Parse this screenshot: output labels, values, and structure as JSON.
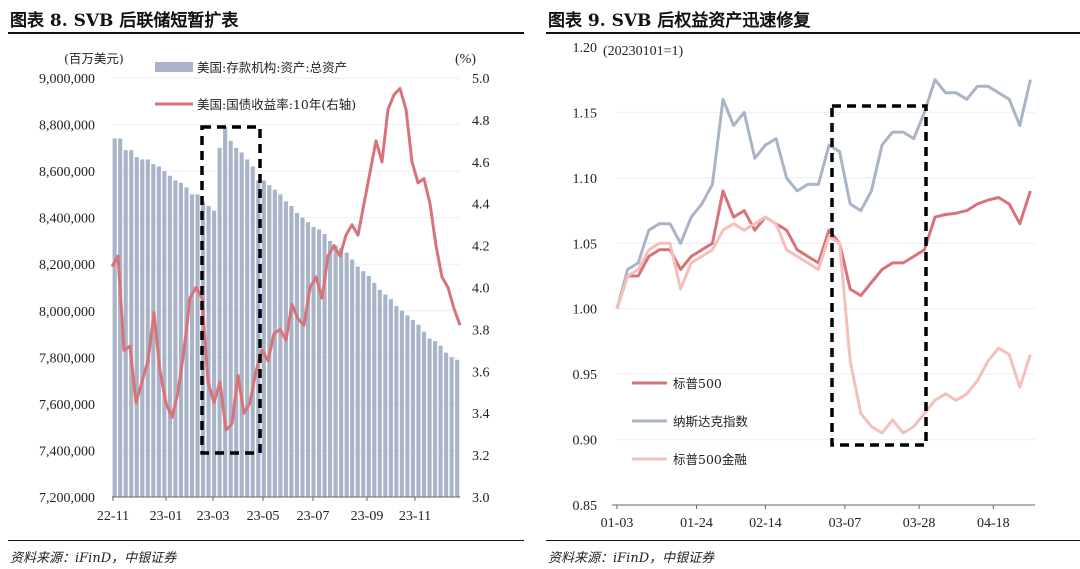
{
  "chart_data": [
    {
      "type": "bar",
      "title": "图表 8. SVB 后联储短暂扩表",
      "left_unit": "(百万美元)",
      "right_unit": "(%)",
      "source": "资料来源：iFinD，中银证券",
      "ylim": [
        7200000,
        9000000
      ],
      "y2lim": [
        3.0,
        5.0
      ],
      "yticks": [
        "9,000,000",
        "8,800,000",
        "8,600,000",
        "8,400,000",
        "8,200,000",
        "8,000,000",
        "7,800,000",
        "7,600,000",
        "7,400,000",
        "7,200,000"
      ],
      "y2ticks": [
        "5.0",
        "4.8",
        "4.6",
        "4.4",
        "4.2",
        "4.0",
        "3.8",
        "3.6",
        "3.4",
        "3.2",
        "3.0"
      ],
      "xticks": [
        "22-11",
        "23-01",
        "23-03",
        "23-05",
        "23-07",
        "23-09",
        "23-11"
      ],
      "legend": [
        "美国:存款机构:资产:总资产",
        "美国:国债收益率:10年(右轴)"
      ],
      "colors": {
        "bars": "#a9b4c9",
        "line": "#d9737a"
      },
      "series": [
        {
          "name": "美国:存款机构:资产:总资产",
          "axis": "left",
          "type": "bar",
          "values": [
            8740000,
            8740000,
            8690000,
            8690000,
            8660000,
            8650000,
            8650000,
            8630000,
            8620000,
            8600000,
            8580000,
            8560000,
            8550000,
            8530000,
            8500000,
            8500000,
            8470000,
            8450000,
            8430000,
            8700000,
            8790000,
            8730000,
            8700000,
            8680000,
            8650000,
            8620000,
            8560000,
            8560000,
            8540000,
            8520000,
            8500000,
            8470000,
            8450000,
            8420000,
            8400000,
            8380000,
            8360000,
            8350000,
            8330000,
            8300000,
            8280000,
            8270000,
            8250000,
            8220000,
            8190000,
            8170000,
            8150000,
            8120000,
            8090000,
            8070000,
            8050000,
            8020000,
            8000000,
            7980000,
            7960000,
            7940000,
            7910000,
            7880000,
            7870000,
            7850000,
            7820000,
            7800000,
            7790000
          ]
        },
        {
          "name": "美国:国债收益率:10年(右轴)",
          "axis": "right",
          "type": "line",
          "values": [
            4.1,
            4.15,
            3.7,
            3.72,
            3.45,
            3.55,
            3.65,
            3.88,
            3.6,
            3.45,
            3.38,
            3.5,
            3.7,
            3.95,
            4.0,
            3.95,
            3.55,
            3.45,
            3.55,
            3.32,
            3.35,
            3.58,
            3.4,
            3.45,
            3.6,
            3.7,
            3.65,
            3.78,
            3.8,
            3.75,
            3.92,
            3.85,
            3.82,
            4.0,
            4.05,
            3.95,
            4.15,
            4.2,
            4.15,
            4.25,
            4.3,
            4.25,
            4.4,
            4.55,
            4.7,
            4.6,
            4.85,
            4.92,
            4.95,
            4.85,
            4.6,
            4.5,
            4.52,
            4.4,
            4.2,
            4.05,
            4.0,
            3.9,
            3.82
          ]
        }
      ]
    },
    {
      "type": "line",
      "title": "图表 9. SVB 后权益资产迅速修复",
      "unit_note": "(20230101=1)",
      "source": "资料来源：iFinD，中银证券",
      "ylim": [
        0.85,
        1.2
      ],
      "yticks": [
        "1.20",
        "1.15",
        "1.10",
        "1.05",
        "1.00",
        "0.95",
        "0.90",
        "0.85"
      ],
      "xticks": [
        "01-03",
        "01-24",
        "02-14",
        "03-07",
        "03-28",
        "04-18"
      ],
      "xtick_days": [
        0,
        15,
        28,
        43,
        57,
        71
      ],
      "x_days": [
        0,
        2,
        4,
        6,
        8,
        10,
        12,
        14,
        16,
        18,
        20,
        22,
        24,
        26,
        28,
        30,
        32,
        34,
        36,
        38,
        40,
        42,
        44,
        46,
        48,
        50,
        52,
        54,
        56,
        58,
        60,
        62,
        64,
        66,
        68,
        70,
        72,
        74,
        76,
        78
      ],
      "series": [
        {
          "name": "标普500",
          "color": "#d9737a",
          "values": [
            1.0,
            1.025,
            1.025,
            1.04,
            1.045,
            1.045,
            1.03,
            1.04,
            1.045,
            1.05,
            1.09,
            1.07,
            1.075,
            1.06,
            1.07,
            1.065,
            1.06,
            1.045,
            1.04,
            1.035,
            1.06,
            1.05,
            1.015,
            1.01,
            1.02,
            1.03,
            1.035,
            1.035,
            1.04,
            1.045,
            1.07,
            1.072,
            1.073,
            1.075,
            1.08,
            1.083,
            1.085,
            1.08,
            1.065,
            1.09
          ]
        },
        {
          "name": "纳斯达克指数",
          "color": "#a9b4c9",
          "values": [
            1.0,
            1.03,
            1.035,
            1.06,
            1.065,
            1.065,
            1.05,
            1.07,
            1.08,
            1.095,
            1.16,
            1.14,
            1.15,
            1.115,
            1.125,
            1.13,
            1.1,
            1.09,
            1.095,
            1.095,
            1.125,
            1.12,
            1.08,
            1.075,
            1.09,
            1.125,
            1.135,
            1.135,
            1.13,
            1.15,
            1.175,
            1.165,
            1.165,
            1.16,
            1.17,
            1.17,
            1.165,
            1.16,
            1.14,
            1.175
          ]
        },
        {
          "name": "标普500金融",
          "color": "#f4c0bc",
          "values": [
            1.0,
            1.025,
            1.03,
            1.045,
            1.05,
            1.05,
            1.015,
            1.035,
            1.04,
            1.045,
            1.06,
            1.065,
            1.06,
            1.065,
            1.07,
            1.065,
            1.045,
            1.04,
            1.035,
            1.03,
            1.055,
            1.05,
            0.96,
            0.92,
            0.91,
            0.905,
            0.915,
            0.905,
            0.91,
            0.92,
            0.93,
            0.935,
            0.93,
            0.935,
            0.945,
            0.96,
            0.97,
            0.965,
            0.94,
            0.965
          ]
        }
      ]
    }
  ]
}
